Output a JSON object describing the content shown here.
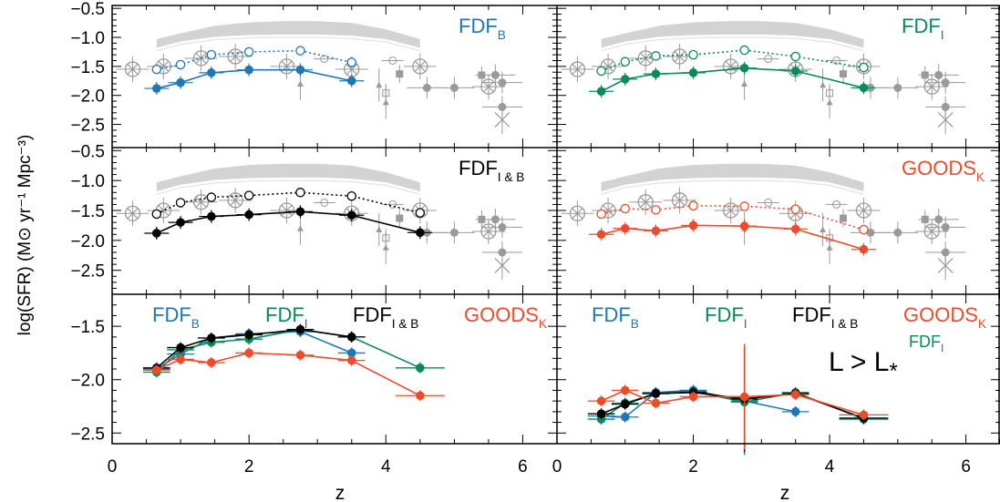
{
  "figure": {
    "ylabel": "log(SFR) (M⊙ yr⁻¹ Mpc⁻³)",
    "xlabel": "z",
    "colors": {
      "fdf_b": "#1f77b4",
      "fdf_i": "#0a8a5a",
      "fdf_ib": "#000000",
      "goods_k": "#ee4b2b",
      "literature": "#9a9a9a",
      "band": "#d3d3d3"
    }
  },
  "chart_data": [
    {
      "type": "scatter",
      "panel": "top-left",
      "label_main": "FDF",
      "label_sub": "B",
      "label_color": "fdf_b",
      "xlim": [
        0,
        6.5
      ],
      "ylim": [
        -2.9,
        -0.45
      ],
      "yticks": [
        -0.5,
        -1.0,
        -1.5,
        -2.0,
        -2.5
      ],
      "series": [
        {
          "color": "fdf_b",
          "style": "solid",
          "filled": true,
          "x": [
            0.65,
            1.0,
            1.45,
            2.0,
            2.75,
            3.5
          ],
          "y": [
            -1.88,
            -1.78,
            -1.61,
            -1.56,
            -1.56,
            -1.75
          ]
        },
        {
          "color": "fdf_b",
          "style": "dotted",
          "filled": false,
          "x": [
            0.65,
            1.0,
            1.45,
            2.0,
            2.75,
            3.5
          ],
          "y": [
            -1.55,
            -1.47,
            -1.3,
            -1.25,
            -1.23,
            -1.43
          ]
        }
      ]
    },
    {
      "type": "scatter",
      "panel": "top-right",
      "label_main": "FDF",
      "label_sub": "I",
      "label_color": "fdf_i",
      "xlim": [
        0,
        6.5
      ],
      "ylim": [
        -2.9,
        -0.45
      ],
      "yticks": [
        -0.5,
        -1.0,
        -1.5,
        -2.0,
        -2.5
      ],
      "series": [
        {
          "color": "fdf_i",
          "style": "solid",
          "filled": true,
          "x": [
            0.65,
            1.0,
            1.45,
            2.0,
            2.75,
            3.5,
            4.5
          ],
          "y": [
            -1.93,
            -1.72,
            -1.63,
            -1.61,
            -1.53,
            -1.58,
            -1.87
          ]
        },
        {
          "color": "fdf_i",
          "style": "dotted",
          "filled": false,
          "x": [
            0.65,
            1.0,
            1.45,
            2.0,
            2.75,
            3.5,
            4.5
          ],
          "y": [
            -1.58,
            -1.42,
            -1.32,
            -1.3,
            -1.22,
            -1.33,
            -1.52
          ]
        }
      ]
    },
    {
      "type": "scatter",
      "panel": "mid-left",
      "label_main": "FDF",
      "label_sub": "I & B",
      "label_color": "fdf_ib",
      "xlim": [
        0,
        6.5
      ],
      "ylim": [
        -2.9,
        -0.45
      ],
      "yticks": [
        -0.5,
        -1.0,
        -1.5,
        -2.0,
        -2.5
      ],
      "series": [
        {
          "color": "fdf_ib",
          "style": "solid",
          "filled": true,
          "x": [
            0.65,
            1.0,
            1.45,
            2.0,
            2.75,
            3.5,
            4.5
          ],
          "y": [
            -1.88,
            -1.7,
            -1.6,
            -1.57,
            -1.52,
            -1.58,
            -1.87
          ]
        },
        {
          "color": "fdf_ib",
          "style": "dotted",
          "filled": false,
          "x": [
            0.65,
            1.0,
            1.45,
            2.0,
            2.75,
            3.5,
            4.5
          ],
          "y": [
            -1.56,
            -1.37,
            -1.28,
            -1.25,
            -1.2,
            -1.26,
            -1.54
          ]
        }
      ]
    },
    {
      "type": "scatter",
      "panel": "mid-right",
      "label_main": "GOODS",
      "label_sub": "K",
      "label_color": "goods_k",
      "xlim": [
        0,
        6.5
      ],
      "ylim": [
        -2.9,
        -0.45
      ],
      "yticks": [
        -0.5,
        -1.0,
        -1.5,
        -2.0,
        -2.5
      ],
      "series": [
        {
          "color": "goods_k",
          "style": "solid",
          "filled": true,
          "x": [
            0.65,
            1.0,
            1.45,
            2.0,
            2.75,
            3.5,
            4.5
          ],
          "y": [
            -1.9,
            -1.8,
            -1.84,
            -1.75,
            -1.76,
            -1.81,
            -2.15
          ]
        },
        {
          "color": "goods_k",
          "style": "dotted",
          "filled": false,
          "x": [
            0.65,
            1.0,
            1.45,
            2.0,
            2.75,
            3.5,
            4.5
          ],
          "y": [
            -1.56,
            -1.47,
            -1.49,
            -1.42,
            -1.43,
            -1.48,
            -1.82
          ]
        }
      ]
    },
    {
      "type": "line",
      "panel": "bottom-left",
      "labels": [
        {
          "main": "FDF",
          "sub": "B",
          "color": "fdf_b"
        },
        {
          "main": "FDF",
          "sub": "I",
          "color": "fdf_i"
        },
        {
          "main": "FDF",
          "sub": "I & B",
          "color": "fdf_ib"
        },
        {
          "main": "GOODS",
          "sub": "K",
          "color": "goods_k"
        }
      ],
      "xlim": [
        0,
        6.5
      ],
      "ylim": [
        -2.6,
        -1.2
      ],
      "yticks": [
        -1.5,
        -2.0,
        -2.5
      ],
      "xticks": [
        0,
        2,
        4,
        6
      ],
      "series": [
        {
          "color": "fdf_b",
          "x": [
            0.65,
            1.0,
            1.45,
            2.0,
            2.75,
            3.5
          ],
          "y": [
            -1.9,
            -1.76,
            -1.61,
            -1.57,
            -1.55,
            -1.75
          ]
        },
        {
          "color": "fdf_i",
          "x": [
            0.65,
            1.0,
            1.45,
            2.0,
            2.75,
            3.5,
            4.5
          ],
          "y": [
            -1.93,
            -1.72,
            -1.65,
            -1.62,
            -1.53,
            -1.6,
            -1.89
          ]
        },
        {
          "color": "fdf_ib",
          "x": [
            0.65,
            1.0,
            1.45,
            2.0,
            2.75,
            3.5
          ],
          "y": [
            -1.89,
            -1.7,
            -1.61,
            -1.58,
            -1.53,
            -1.6
          ]
        },
        {
          "color": "goods_k",
          "x": [
            0.65,
            1.0,
            1.45,
            2.0,
            2.75,
            3.5,
            4.5
          ],
          "y": [
            -1.91,
            -1.81,
            -1.84,
            -1.75,
            -1.77,
            -1.82,
            -2.15
          ]
        }
      ]
    },
    {
      "type": "line",
      "panel": "bottom-right",
      "labels": [
        {
          "main": "FDF",
          "sub": "B",
          "color": "fdf_b"
        },
        {
          "main": "FDF",
          "sub": "I",
          "color": "fdf_i"
        },
        {
          "main": "FDF",
          "sub": "I & B",
          "color": "fdf_ib"
        },
        {
          "main": "GOODS",
          "sub": "K",
          "color": "goods_k"
        }
      ],
      "annotation": {
        "text": "L > L",
        "star": "*",
        "sup": "FDF",
        "sup_sub": "I"
      },
      "xlim": [
        0,
        6.5
      ],
      "ylim": [
        -2.6,
        -1.2
      ],
      "yticks": [
        -1.5,
        -2.0,
        -2.5
      ],
      "xticks": [
        0,
        2,
        4,
        6
      ],
      "series": [
        {
          "color": "fdf_b",
          "x": [
            0.65,
            1.0,
            1.45,
            2.0,
            2.75,
            3.5
          ],
          "y": [
            -2.34,
            -2.35,
            -2.12,
            -2.1,
            -2.2,
            -2.3
          ]
        },
        {
          "color": "fdf_i",
          "x": [
            0.65,
            1.0,
            1.45,
            2.0,
            2.75,
            3.5,
            4.5
          ],
          "y": [
            -2.37,
            -2.22,
            -2.13,
            -2.11,
            -2.21,
            -2.12,
            -2.37
          ]
        },
        {
          "color": "fdf_ib",
          "x": [
            0.65,
            1.0,
            1.45,
            2.0,
            2.75,
            3.5,
            4.5
          ],
          "y": [
            -2.32,
            -2.23,
            -2.13,
            -2.12,
            -2.18,
            -2.13,
            -2.36
          ]
        },
        {
          "color": "goods_k",
          "x": [
            0.65,
            1.0,
            1.45,
            2.0,
            2.75,
            3.5,
            4.5
          ],
          "y": [
            -2.2,
            -2.1,
            -2.22,
            -2.16,
            -2.16,
            -2.14,
            -2.33
          ]
        }
      ]
    }
  ],
  "literature": {
    "band_x": [
      0.65,
      1.0,
      1.5,
      2.0,
      2.5,
      3.0,
      3.5,
      4.0,
      4.5
    ],
    "band_top": [
      -1.03,
      -0.93,
      -0.8,
      -0.74,
      -0.72,
      -0.72,
      -0.75,
      -0.86,
      -1.03
    ],
    "band_bottom": [
      -1.18,
      -1.07,
      -0.99,
      -0.96,
      -0.95,
      -0.95,
      -0.97,
      -1.03,
      -1.18
    ],
    "cross_circle_x": [
      0.3,
      0.75,
      1.3,
      1.8,
      2.55,
      3.5,
      4.5,
      5.5
    ],
    "cross_circle_y": [
      -1.55,
      -1.5,
      -1.36,
      -1.33,
      -1.5,
      -1.55,
      -1.5,
      -1.85
    ],
    "filled_x": [
      4.6,
      5.0,
      5.6,
      5.7,
      5.7
    ],
    "filled_y": [
      -1.87,
      -1.87,
      -1.65,
      -1.78,
      -2.2
    ],
    "squares_x": [
      4.2,
      4.0,
      5.4
    ],
    "squares_y": [
      -1.63,
      -1.96,
      -1.65
    ],
    "open_circles_x": [
      3.1,
      4.1
    ],
    "open_circles_y": [
      -1.37,
      -1.4
    ],
    "triangles_x": [
      2.75,
      4.0,
      3.9
    ],
    "triangles_y": [
      -1.8,
      -2.12,
      -1.82
    ],
    "star_x": [
      5.7
    ],
    "star_y": [
      -2.42
    ]
  }
}
